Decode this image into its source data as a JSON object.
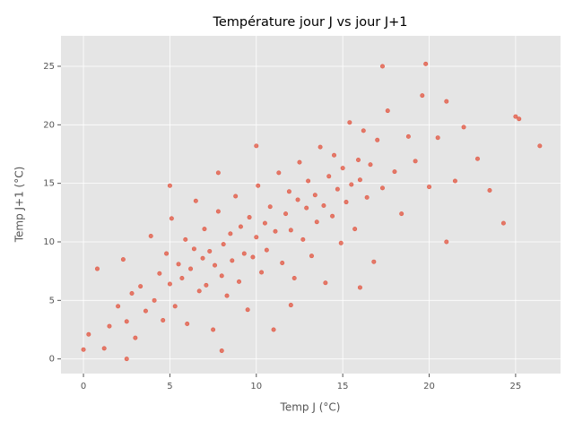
{
  "chart_data": {
    "type": "scatter",
    "title": "Température jour J vs jour J+1",
    "x_label": "Temp J (°C)",
    "y_label": "Temp J+1 (°C)",
    "xlim": [
      -1.3,
      27.6
    ],
    "ylim": [
      -1.25,
      27.6
    ],
    "xticks": [
      0,
      5,
      10,
      15,
      20,
      25
    ],
    "yticks": [
      0,
      5,
      10,
      15,
      20,
      25
    ],
    "grid": true,
    "series": [
      {
        "color": "#E24A33",
        "x": [
          0.0,
          0.3,
          0.8,
          1.2,
          1.5,
          2.0,
          2.3,
          2.5,
          2.8,
          3.0,
          3.3,
          3.6,
          3.9,
          4.1,
          4.4,
          4.6,
          4.8,
          5.0,
          5.1,
          5.3,
          5.5,
          5.7,
          5.9,
          6.0,
          6.2,
          6.4,
          6.5,
          6.7,
          6.9,
          7.0,
          7.1,
          7.3,
          7.5,
          7.6,
          7.8,
          8.0,
          8.1,
          8.3,
          8.5,
          8.6,
          8.8,
          9.0,
          9.1,
          9.3,
          9.5,
          9.6,
          9.8,
          10.0,
          10.1,
          10.3,
          10.5,
          10.6,
          10.8,
          11.0,
          11.1,
          11.3,
          11.5,
          11.7,
          11.9,
          12.0,
          12.2,
          12.4,
          12.5,
          12.7,
          12.9,
          13.0,
          13.2,
          13.4,
          13.5,
          13.7,
          13.9,
          14.0,
          14.2,
          14.4,
          14.5,
          14.7,
          14.9,
          15.0,
          15.2,
          15.4,
          15.5,
          15.7,
          15.9,
          16.0,
          16.2,
          16.4,
          16.6,
          16.8,
          17.0,
          17.3,
          17.6,
          18.0,
          18.4,
          18.8,
          19.2,
          19.6,
          20.0,
          20.5,
          21.0,
          21.5,
          22.0,
          22.8,
          23.5,
          24.3,
          25.0,
          25.2,
          26.4,
          2.5,
          16.0,
          21.0,
          10.0,
          5.0,
          7.8,
          12.0,
          8.0,
          17.3,
          19.8
        ],
        "y": [
          0.8,
          2.1,
          7.7,
          0.9,
          2.8,
          4.5,
          8.5,
          3.2,
          5.6,
          1.8,
          6.2,
          4.1,
          10.5,
          5.0,
          7.3,
          3.3,
          9.0,
          6.4,
          12.0,
          4.5,
          8.1,
          6.9,
          10.2,
          3.0,
          7.7,
          9.4,
          13.5,
          5.8,
          8.6,
          11.1,
          6.3,
          9.2,
          2.5,
          8.0,
          12.6,
          7.1,
          9.8,
          5.4,
          10.7,
          8.4,
          13.9,
          6.6,
          11.3,
          9.0,
          4.2,
          12.1,
          8.7,
          10.4,
          14.8,
          7.4,
          11.6,
          9.3,
          13.0,
          2.5,
          10.9,
          15.9,
          8.2,
          12.4,
          14.3,
          11.0,
          6.9,
          13.6,
          16.8,
          10.2,
          12.9,
          15.2,
          8.8,
          14.0,
          11.7,
          18.1,
          13.1,
          6.5,
          15.6,
          12.2,
          17.4,
          14.5,
          9.9,
          16.3,
          13.4,
          20.2,
          14.9,
          11.1,
          17.0,
          15.3,
          19.5,
          13.8,
          16.6,
          8.3,
          18.7,
          14.6,
          21.2,
          16.0,
          12.4,
          19.0,
          16.9,
          22.5,
          14.7,
          18.9,
          22.0,
          15.2,
          19.8,
          17.1,
          14.4,
          11.6,
          20.7,
          20.5,
          18.2,
          0.0,
          6.1,
          10.0,
          18.2,
          14.8,
          15.9,
          4.6,
          0.7,
          25.0,
          25.2
        ]
      }
    ]
  }
}
